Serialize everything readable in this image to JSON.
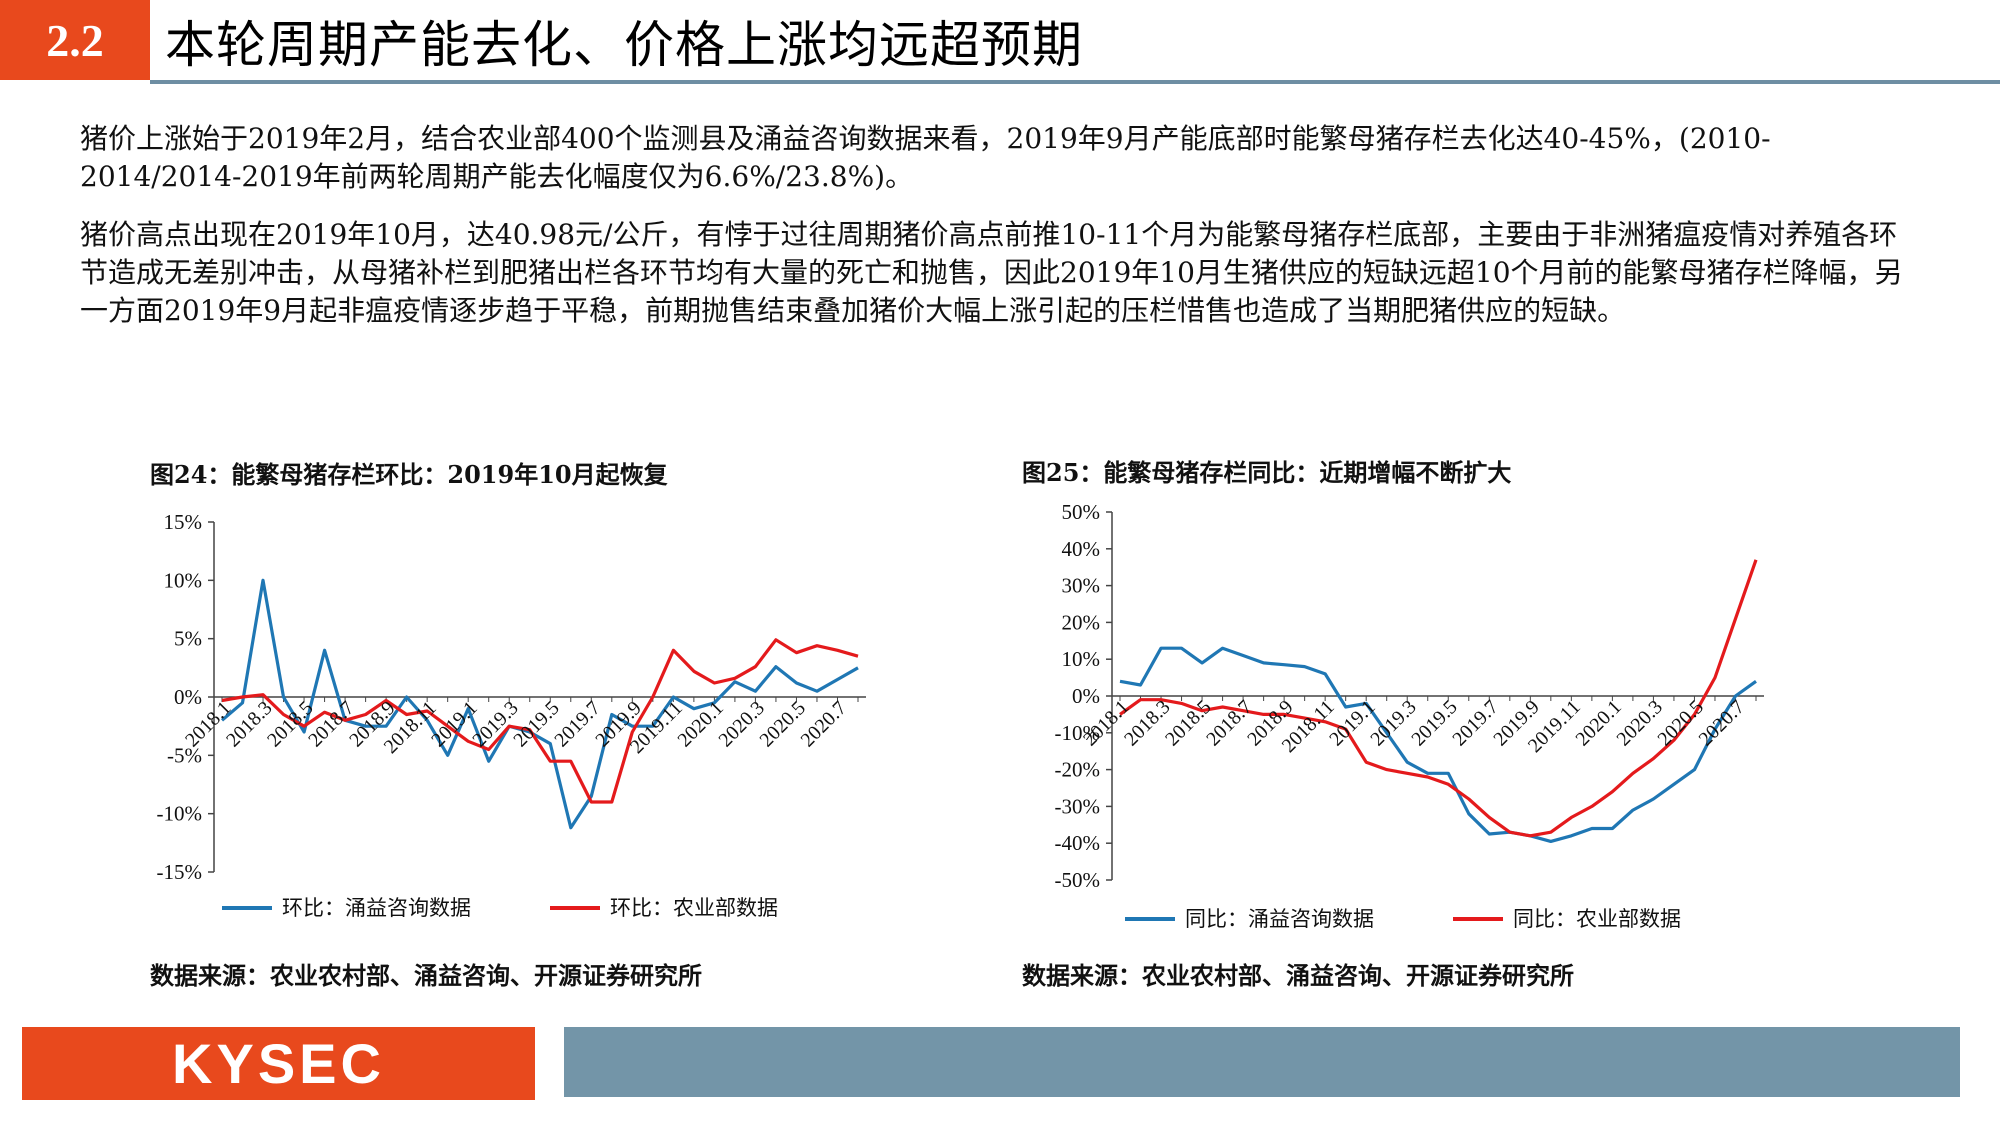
{
  "header": {
    "section": "2.2",
    "title": "本轮周期产能去化、价格上涨均远超预期"
  },
  "paragraphs": {
    "p1": "猪价上涨始于2019年2月，结合农业部400个监测县及涌益咨询数据来看，2019年9月产能底部时能繁母猪存栏去化达40-45%，(2010-2014/2014-2019年前两轮周期产能去化幅度仅为6.6%/23.8%)。",
    "p2": "猪价高点出现在2019年10月，达40.98元/公斤，有悖于过往周期猪价高点前推10-11个月为能繁母猪存栏底部，主要由于非洲猪瘟疫情对养殖各环节造成无差别冲击，从母猪补栏到肥猪出栏各环节均有大量的死亡和抛售，因此2019年10月生猪供应的短缺远超10个月前的能繁母猪存栏降幅，另一方面2019年9月起非瘟疫情逐步趋于平稳，前期抛售结束叠加猪价大幅上涨引起的压栏惜售也造成了当期肥猪供应的短缺。"
  },
  "chart_data": [
    {
      "type": "line",
      "title": "图24：能繁母猪存栏环比：2019年10月起恢复",
      "source": "数据来源：农业农村部、涌益咨询、开源证券研究所",
      "tick_labels": [
        "2018.1",
        "2018.3",
        "2018.5",
        "2018.7",
        "2018.9",
        "2018.11",
        "2019.1",
        "2019.3",
        "2019.5",
        "2019.7",
        "2019.9",
        "2019.11",
        "2020.1",
        "2020.3",
        "2020.5",
        "2020.7"
      ],
      "yticks": [
        "15%",
        "10%",
        "5%",
        "0%",
        "-5%",
        "-10%",
        "-15%"
      ],
      "ylim": [
        -15,
        15
      ],
      "legend_position": "bottom",
      "series": [
        {
          "name": "环比：涌益咨询数据",
          "color": "#1f77b4",
          "values": [
            -2,
            -0.5,
            10,
            0,
            -3,
            4,
            -2,
            -2.5,
            -2.5,
            0,
            -2,
            -5,
            -1,
            -5.5,
            -2.5,
            -3,
            -4,
            -11.2,
            -8.5,
            -1.5,
            -2.5,
            -2.5,
            0,
            -1,
            -0.5,
            1.3,
            0.5,
            2.6,
            1.2,
            0.5,
            1.5,
            2.5
          ]
        },
        {
          "name": "环比：农业部数据",
          "color": "#e41a1c",
          "values": [
            -0.3,
            0,
            0.2,
            -1.5,
            -2.5,
            -1.3,
            -2,
            -1.5,
            -0.3,
            -1.5,
            -1.2,
            -2.5,
            -3.8,
            -4.5,
            -2.5,
            -2.8,
            -5.5,
            -5.5,
            -9,
            -9,
            -3,
            0,
            4,
            2.2,
            1.2,
            1.6,
            2.6,
            4.9,
            3.8,
            4.4,
            4,
            3.5
          ]
        }
      ]
    },
    {
      "type": "line",
      "title": "图25：能繁母猪存栏同比：近期增幅不断扩大",
      "source": "数据来源：农业农村部、涌益咨询、开源证券研究所",
      "tick_labels": [
        "2018.1",
        "2018.3",
        "2018.5",
        "2018.7",
        "2018.9",
        "2018.11",
        "2019.1",
        "2019.3",
        "2019.5",
        "2019.7",
        "2019.9",
        "2019.11",
        "2020.1",
        "2020.3",
        "2020.5",
        "2020.7"
      ],
      "yticks": [
        "50%",
        "40%",
        "30%",
        "20%",
        "10%",
        "0%",
        "-10%",
        "-20%",
        "-30%",
        "-40%",
        "-50%"
      ],
      "ylim": [
        -50,
        50
      ],
      "legend_position": "bottom",
      "series": [
        {
          "name": "同比：涌益咨询数据",
          "color": "#1f77b4",
          "values": [
            4,
            3,
            13,
            13,
            9,
            13,
            11,
            9,
            8.5,
            8,
            6,
            -3,
            -2,
            -10,
            -18,
            -21,
            -21,
            -32,
            -37.5,
            -37,
            -38,
            -39.5,
            -38,
            -36,
            -36,
            -31,
            -28,
            -24,
            -20,
            -9,
            0,
            4
          ]
        },
        {
          "name": "同比：农业部数据",
          "color": "#e41a1c",
          "values": [
            -5,
            -1,
            -1,
            -2,
            -4,
            -3,
            -4,
            -5,
            -5,
            -6,
            -7,
            -9,
            -18,
            -20,
            -21,
            -22,
            -24,
            -28,
            -33,
            -37,
            -38,
            -37,
            -33,
            -30,
            -26,
            -21,
            -17,
            -12,
            -5,
            5,
            21,
            37
          ]
        }
      ]
    }
  ],
  "footer": {
    "logo": "KYSEC"
  }
}
